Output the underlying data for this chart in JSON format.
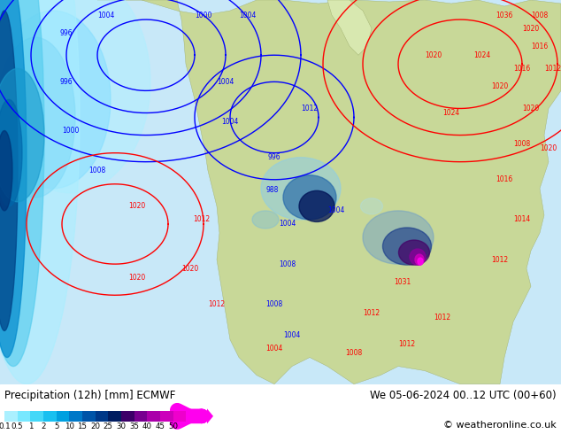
{
  "title_left": "Precipitation (12h) [mm] ECMWF",
  "title_right": "We 05-06-2024 00..12 UTC (00+60)",
  "copyright": "© weatheronline.co.uk",
  "colorbar_tick_labels": [
    "0.1",
    "0.5",
    "1",
    "2",
    "5",
    "10",
    "15",
    "20",
    "25",
    "30",
    "35",
    "40",
    "45",
    "50"
  ],
  "colorbar_colors": [
    "#aaf0ff",
    "#78e8ff",
    "#44d8f8",
    "#18c0f0",
    "#00a0e0",
    "#0078c8",
    "#0054a8",
    "#003888",
    "#001c60",
    "#3c0068",
    "#780090",
    "#aa00aa",
    "#cc00bb",
    "#ee00cc",
    "#ff00ee"
  ],
  "ocean_color": "#c8e8f8",
  "land_color": "#c8d898",
  "fig_width": 6.34,
  "fig_height": 4.9,
  "dpi": 100
}
